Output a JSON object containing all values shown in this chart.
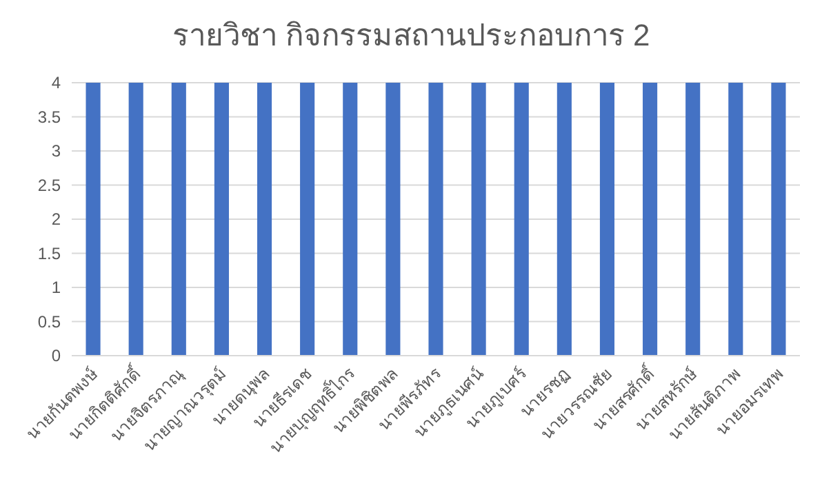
{
  "chart_data": {
    "type": "bar",
    "title": "รายวิชา กิจกรรมสถานประกอบการ 2",
    "categories": [
      "นายกันตพงษ์",
      "นายกิตติศักดิ์",
      "นายจิตรภาณุ",
      "นายญาณวรุตม์",
      "นายดนุพล",
      "นายธีรเดช",
      "นายบุญฤทธิ์ไกร",
      "นายพิชิตพล",
      "นายพีรภัทร",
      "นายภูธเนศน์",
      "นายภูเบศร์",
      "นายรชฏ",
      "นายวรรณชัย",
      "นายสรศักดิ์",
      "นายสหรักษ์",
      "นายสันติภาพ",
      "นายอมรเทพ"
    ],
    "series": [
      {
        "color": "#4472c4",
        "values": [
          4,
          4,
          4,
          4,
          4,
          4,
          4,
          4,
          4,
          4,
          4,
          4,
          4,
          4,
          4,
          4,
          4
        ]
      }
    ],
    "ylim": [
      0,
      4
    ],
    "yticks": [
      0,
      0.5,
      1,
      1.5,
      2,
      2.5,
      3,
      3.5,
      4
    ],
    "grid": "y"
  }
}
